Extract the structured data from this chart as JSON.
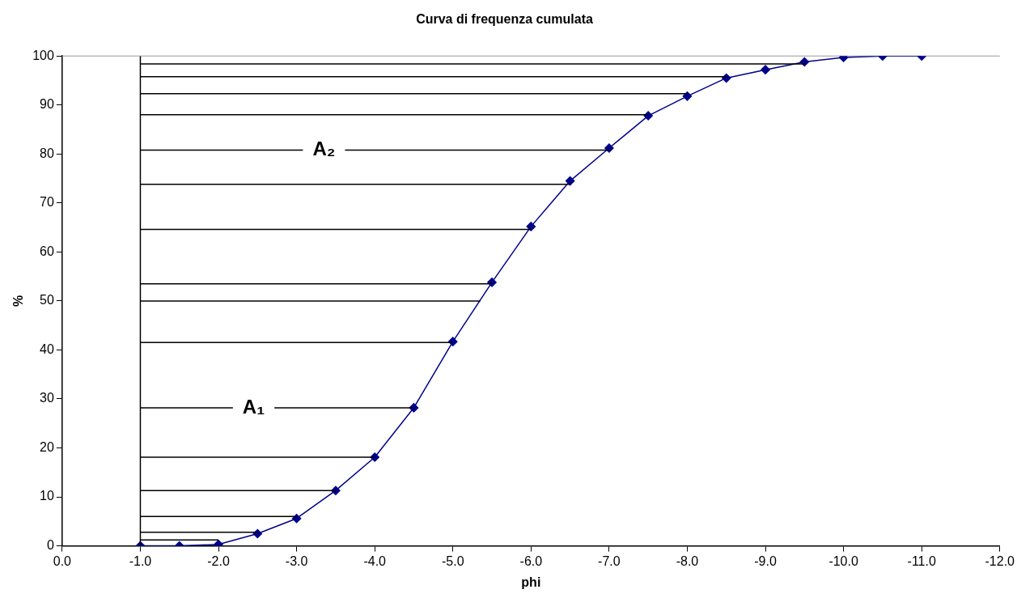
{
  "chart_data": {
    "type": "line",
    "title": "Curva di frequenza cumulata",
    "xlabel": "phi",
    "ylabel": "%",
    "xlim": [
      0,
      -12
    ],
    "xticks": [
      {
        "value": 0,
        "label": "0.0"
      },
      {
        "value": -1,
        "label": "-1.0"
      },
      {
        "value": -2,
        "label": "-2.0"
      },
      {
        "value": -3,
        "label": "-3.0"
      },
      {
        "value": -4,
        "label": "-4.0"
      },
      {
        "value": -5,
        "label": "-5.0"
      },
      {
        "value": -6,
        "label": "-6.0"
      },
      {
        "value": -7,
        "label": "-7.0"
      },
      {
        "value": -8,
        "label": "-8.0"
      },
      {
        "value": -9,
        "label": "-9.0"
      },
      {
        "value": -10,
        "label": "-10.0"
      },
      {
        "value": -11,
        "label": "-11.0"
      },
      {
        "value": -12,
        "label": "-12.0"
      }
    ],
    "ylim": [
      0,
      100
    ],
    "yticks": [
      0,
      10,
      20,
      30,
      40,
      50,
      60,
      70,
      80,
      90,
      100
    ],
    "grid": false,
    "legend": false,
    "series": [
      {
        "color": "#000000",
        "marker": "none",
        "x": [
          -1,
          -1
        ],
        "values": [
          0,
          100
        ]
      },
      {
        "color": "#000000",
        "marker": "none",
        "x": [
          -1,
          -2
        ],
        "values": [
          1.2,
          1.2
        ]
      },
      {
        "color": "#000000",
        "marker": "none",
        "x": [
          -1,
          -2.5
        ],
        "values": [
          2.8,
          2.8
        ]
      },
      {
        "color": "#000000",
        "marker": "none",
        "x": [
          -1,
          -3
        ],
        "values": [
          6,
          6
        ]
      },
      {
        "color": "#000000",
        "marker": "none",
        "x": [
          -1,
          -3.5
        ],
        "values": [
          11.3,
          11.3
        ]
      },
      {
        "color": "#000000",
        "marker": "none",
        "x": [
          -1,
          -4
        ],
        "values": [
          18.1,
          18.1
        ]
      },
      {
        "color": "#000000",
        "marker": "none",
        "x": [
          -1,
          -4.5
        ],
        "values": [
          28.2,
          28.2
        ]
      },
      {
        "color": "#000000",
        "marker": "none",
        "x": [
          -1,
          -5
        ],
        "values": [
          41.5,
          41.5
        ]
      },
      {
        "color": "#000000",
        "marker": "none",
        "x": [
          -1,
          -5.35
        ],
        "values": [
          50,
          50
        ]
      },
      {
        "color": "#000000",
        "marker": "none",
        "x": [
          -1,
          -5.5
        ],
        "values": [
          53.5,
          53.5
        ]
      },
      {
        "color": "#000000",
        "marker": "none",
        "x": [
          -1,
          -6
        ],
        "values": [
          64.6,
          64.6
        ]
      },
      {
        "color": "#000000",
        "marker": "none",
        "x": [
          -1,
          -6.5
        ],
        "values": [
          73.8,
          73.8
        ]
      },
      {
        "color": "#000000",
        "marker": "none",
        "x": [
          -1,
          -7
        ],
        "values": [
          80.8,
          80.8
        ]
      },
      {
        "color": "#000000",
        "marker": "none",
        "x": [
          -1,
          -7.5
        ],
        "values": [
          88,
          88
        ]
      },
      {
        "color": "#000000",
        "marker": "none",
        "x": [
          -1,
          -8
        ],
        "values": [
          92.3,
          92.3
        ]
      },
      {
        "color": "#000000",
        "marker": "none",
        "x": [
          -1,
          -8.5
        ],
        "values": [
          95.8,
          95.8
        ]
      },
      {
        "color": "#000000",
        "marker": "none",
        "x": [
          -1,
          -9.5
        ],
        "values": [
          98.4,
          98.4
        ]
      },
      {
        "color": "#00008b",
        "marker": "diamond",
        "x": [
          -1,
          -1.5,
          -2,
          -2.5,
          -3,
          -3.5,
          -4,
          -4.5,
          -5,
          -5.5,
          -6,
          -6.5,
          -7,
          -7.5,
          -8,
          -8.5,
          -9,
          -9.5,
          -10,
          -10.5,
          -11
        ],
        "values": [
          0,
          0,
          0.3,
          2.5,
          5.6,
          11.3,
          18.1,
          28.2,
          41.7,
          53.8,
          65.2,
          74.5,
          81.2,
          87.8,
          91.8,
          95.5,
          97.2,
          98.8,
          99.7,
          100,
          100
        ]
      }
    ],
    "annotations": [
      {
        "text": "A₁",
        "x": -2.45,
        "y": 28.2
      },
      {
        "text": "A₂",
        "x": -3.35,
        "y": 80.8
      }
    ]
  }
}
